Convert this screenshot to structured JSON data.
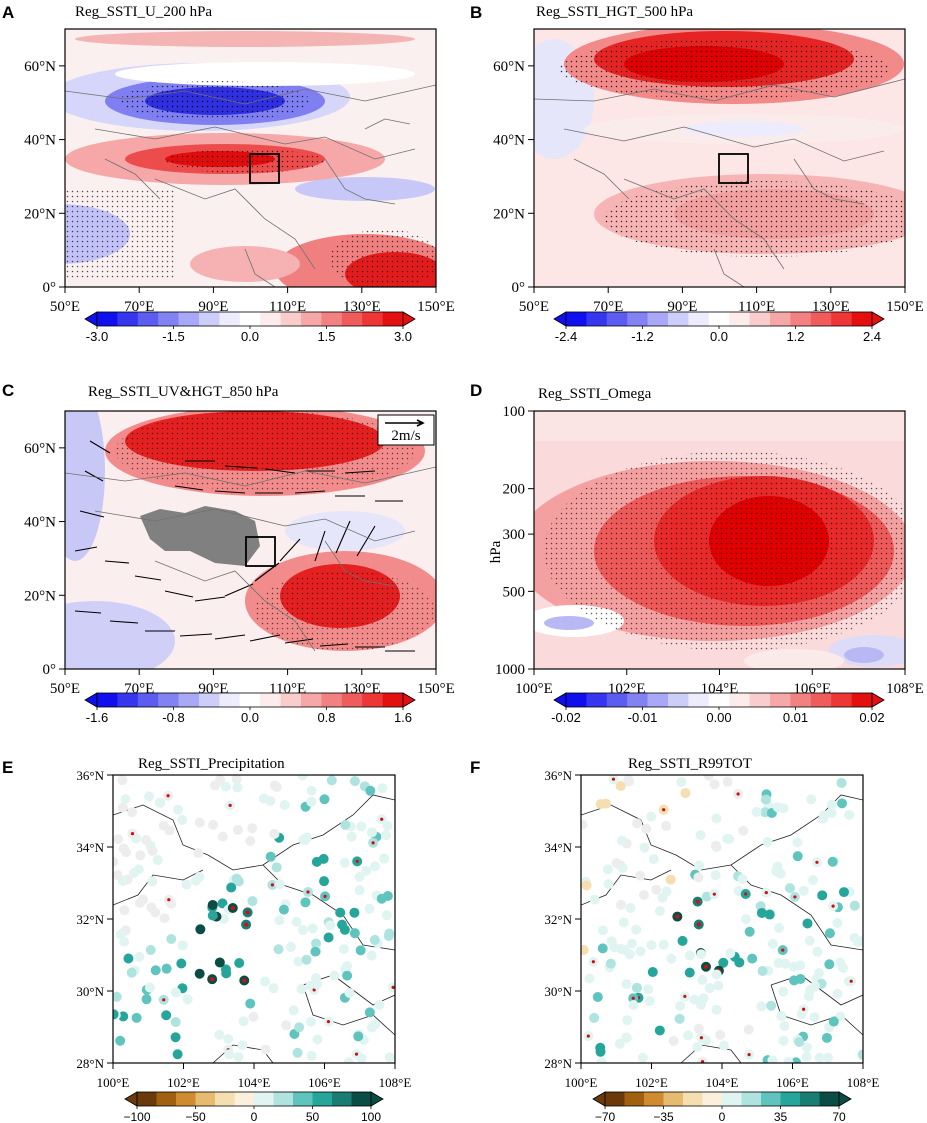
{
  "chart_data": [
    {
      "type": "heatmap",
      "panel": "A",
      "title": "Reg_SSTI_U_200 hPa",
      "xlabel": "",
      "ylabel": "",
      "xticks": [
        "50°E",
        "70°E",
        "90°E",
        "110°E",
        "130°E",
        "150°E"
      ],
      "yticks": [
        "0°",
        "20°N",
        "40°N",
        "60°N"
      ],
      "xlim": [
        50,
        150
      ],
      "ylim": [
        0,
        70
      ],
      "colorbar": {
        "min": -3.0,
        "max": 3.0,
        "labels": [
          "-3.0",
          "-1.5",
          "0.0",
          "1.5",
          "3.0"
        ]
      },
      "features": [
        {
          "kind": "min",
          "x": 90,
          "y": 51,
          "value": -2.8
        },
        {
          "kind": "max",
          "x": 95,
          "y": 35,
          "value": 2.6
        },
        {
          "kind": "max",
          "x": 140,
          "y": 5,
          "value": 2.8
        },
        {
          "kind": "max",
          "x": 110,
          "y": 33,
          "value": 1.8
        }
      ],
      "box": {
        "lon": [
          100,
          108
        ],
        "lat": [
          28,
          36
        ]
      }
    },
    {
      "type": "heatmap",
      "panel": "B",
      "title": "Reg_SSTI_HGT_500 hPa",
      "xlabel": "",
      "ylabel": "",
      "xticks": [
        "50°E",
        "70°E",
        "90°E",
        "110°E",
        "130°E",
        "150°E"
      ],
      "yticks": [
        "0°",
        "20°N",
        "40°N",
        "60°N"
      ],
      "xlim": [
        50,
        150
      ],
      "ylim": [
        0,
        70
      ],
      "colorbar": {
        "min": -2.4,
        "max": 2.4,
        "labels": [
          "-2.4",
          "-1.2",
          "0.0",
          "1.2",
          "2.4"
        ]
      },
      "features": [
        {
          "kind": "max",
          "x": 100,
          "y": 60,
          "value": 2.4
        },
        {
          "kind": "max",
          "x": 115,
          "y": 22,
          "value": 1.2
        },
        {
          "kind": "min",
          "x": 105,
          "y": 43,
          "value": -0.4
        }
      ],
      "box": {
        "lon": [
          100,
          108
        ],
        "lat": [
          28,
          36
        ]
      }
    },
    {
      "type": "heatmap",
      "panel": "C",
      "title": "Reg_SSTI_UV&HGT_850 hPa",
      "xlabel": "",
      "ylabel": "",
      "xticks": [
        "50°E",
        "70°E",
        "90°E",
        "110°E",
        "130°E",
        "150°E"
      ],
      "yticks": [
        "0°",
        "20°N",
        "40°N",
        "60°N"
      ],
      "xlim": [
        50,
        150
      ],
      "ylim": [
        0,
        70
      ],
      "colorbar": {
        "min": -1.6,
        "max": 1.6,
        "labels": [
          "-1.6",
          "-0.8",
          "0.0",
          "0.8",
          "1.6"
        ]
      },
      "vector_reference": "2m/s",
      "features": [
        {
          "kind": "max",
          "x": 100,
          "y": 62,
          "value": 1.6
        },
        {
          "kind": "max",
          "x": 130,
          "y": 22,
          "value": 1.5
        },
        {
          "kind": "min",
          "x": 55,
          "y": 10,
          "value": -0.6
        }
      ],
      "box": {
        "lon": [
          100,
          108
        ],
        "lat": [
          28,
          36
        ]
      }
    },
    {
      "type": "heatmap",
      "panel": "D",
      "title": "Reg_SSTI_Omega",
      "xlabel": "",
      "ylabel": "hPa",
      "xticks": [
        "100°E",
        "102°E",
        "104°E",
        "106°E",
        "108°E"
      ],
      "yticks": [
        "100",
        "200",
        "300",
        "500",
        "1000"
      ],
      "xlim": [
        100,
        108
      ],
      "ylim": [
        1000,
        100
      ],
      "colorbar": {
        "min": -0.02,
        "max": 0.02,
        "labels": [
          "-0.02",
          "-0.01",
          "0.00",
          "0.01",
          "0.02"
        ]
      },
      "features": [
        {
          "kind": "max",
          "x": 105,
          "y": 400,
          "value": 0.02
        },
        {
          "kind": "min",
          "x": 100.8,
          "y": 650,
          "value": -0.008
        }
      ]
    },
    {
      "type": "scatter",
      "panel": "E",
      "title": "Reg_SSTI_Precipitation",
      "xlabel": "",
      "ylabel": "",
      "xticks": [
        "100°E",
        "102°E",
        "104°E",
        "106°E",
        "108°E"
      ],
      "yticks": [
        "28°N",
        "30°N",
        "32°N",
        "34°N",
        "36°N"
      ],
      "xlim": [
        100,
        108
      ],
      "ylim": [
        28,
        36
      ],
      "colorbar": {
        "min": -100,
        "max": 100,
        "labels": [
          "−100",
          "−50",
          "0",
          "50",
          "100"
        ]
      }
    },
    {
      "type": "scatter",
      "panel": "F",
      "title": "Reg_SSTI_R99TOT",
      "xlabel": "",
      "ylabel": "",
      "xticks": [
        "100°E",
        "102°E",
        "104°E",
        "106°E",
        "108°E"
      ],
      "yticks": [
        "28°N",
        "30°N",
        "32°N",
        "34°N",
        "36°N"
      ],
      "xlim": [
        100,
        108
      ],
      "ylim": [
        28,
        36
      ],
      "colorbar": {
        "min": -70,
        "max": 70,
        "labels": [
          "−70",
          "−35",
          "0",
          "35",
          "70"
        ]
      }
    }
  ]
}
